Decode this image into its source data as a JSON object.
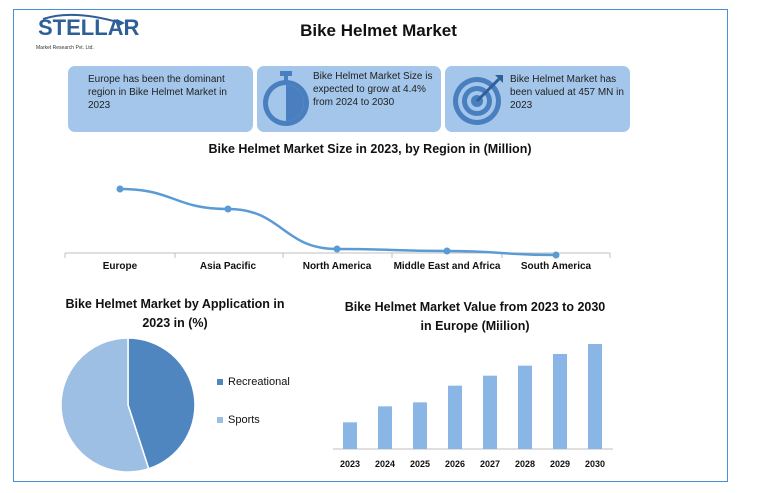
{
  "logo": {
    "name": "STELLAR",
    "sub": "Market Research Pvt. Ltd."
  },
  "title": "Bike Helmet Market",
  "info_boxes": [
    {
      "text": "Europe has been the dominant region in Bike Helmet Market in 2023",
      "icon": "none"
    },
    {
      "text": "Bike Helmet Market Size is expected to grow at 4.4% from 2024 to 2030",
      "icon": "stopwatch-icon"
    },
    {
      "text": "Bike Helmet Market has been valued at 457 MN in 2023",
      "icon": "target-icon"
    }
  ],
  "colors": {
    "accent": "#5b9bd5",
    "box": "#a3c6ea",
    "pie_recreational": "#4f86c0",
    "pie_sports": "#9dbfe4",
    "bar": "#8ab6e6"
  },
  "chart_data": [
    {
      "type": "line",
      "title": "Bike Helmet Market Size in 2023, by Region in (Million)",
      "categories": [
        "Europe",
        "Asia Pacific",
        "North America",
        "Middle East and Africa",
        "South America"
      ],
      "values": [
        160,
        140,
        100,
        98,
        94
      ],
      "ylim": [
        0,
        200
      ],
      "grid": false
    },
    {
      "type": "pie",
      "title": "Bike Helmet Market by Application in 2023 in (%)",
      "labels": [
        "Recreational",
        "Sports"
      ],
      "values": [
        45,
        55
      ],
      "legend": "right"
    },
    {
      "type": "bar",
      "title": "Bike Helmet Market Value from 2023 to 2030 in Europe (Miilion)",
      "categories": [
        "2023",
        "2024",
        "2025",
        "2026",
        "2027",
        "2028",
        "2029",
        "2030"
      ],
      "values": [
        160,
        256,
        280,
        380,
        440,
        500,
        570,
        630
      ],
      "ylim": [
        0,
        700
      ],
      "grid": false
    }
  ]
}
